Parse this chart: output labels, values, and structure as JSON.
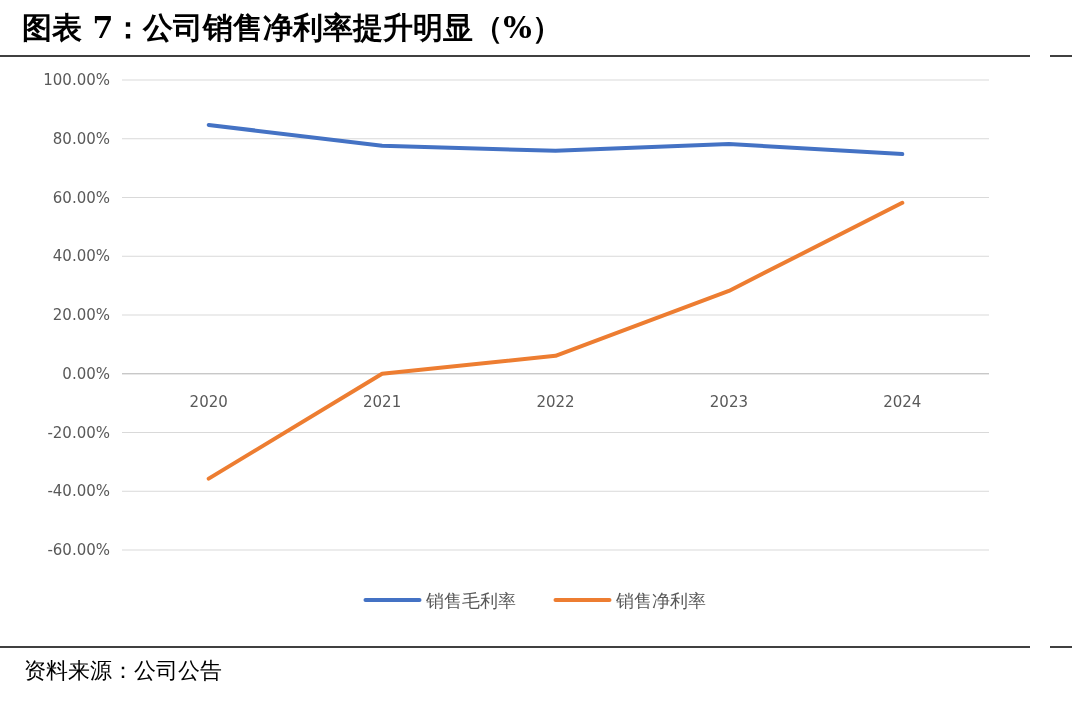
{
  "chart_data": {
    "type": "line",
    "title": "图表 7：公司销售净利率提升明显（%）",
    "categories": [
      "2020",
      "2021",
      "2022",
      "2023",
      "2024"
    ],
    "series": [
      {
        "name": "销售毛利率",
        "color": "#4472c4",
        "values": [
          84.7,
          77.6,
          75.9,
          78.2,
          74.8
        ]
      },
      {
        "name": "销售净利率",
        "color": "#ed7d31",
        "values": [
          -35.7,
          0,
          6.1,
          28.2,
          58.2
        ]
      }
    ],
    "ylim": [
      -60,
      100
    ],
    "yticks": [
      {
        "value": -60,
        "label": "-60.00%"
      },
      {
        "value": -40,
        "label": "-40.00%"
      },
      {
        "value": -20,
        "label": "-20.00%"
      },
      {
        "value": 0,
        "label": "0.00%"
      },
      {
        "value": 20,
        "label": "20.00%"
      },
      {
        "value": 40,
        "label": "40.00%"
      },
      {
        "value": 60,
        "label": "60.00%"
      },
      {
        "value": 80,
        "label": "80.00%"
      },
      {
        "value": 100,
        "label": "100.00%"
      }
    ],
    "grid": "y",
    "legend": "bottom",
    "annotations": [
      "资料来源：公司公告"
    ]
  }
}
